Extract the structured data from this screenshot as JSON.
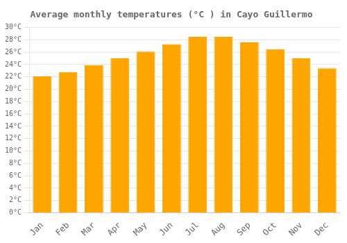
{
  "chart_data": {
    "type": "bar",
    "title": "Average monthly temperatures (°C ) in Cayo Guillermo",
    "categories": [
      "Jan",
      "Feb",
      "Mar",
      "Apr",
      "May",
      "Jun",
      "Jul",
      "Aug",
      "Sep",
      "Oct",
      "Nov",
      "Dec"
    ],
    "values": [
      22.1,
      22.8,
      23.9,
      25.0,
      26.1,
      27.3,
      28.5,
      28.5,
      27.6,
      26.5,
      25.0,
      23.4
    ],
    "color": "#FFA500",
    "ylim": [
      0,
      30
    ],
    "yticks": [
      {
        "value": 0,
        "label": "0°C"
      },
      {
        "value": 2,
        "label": "2°C"
      },
      {
        "value": 4,
        "label": "4°C"
      },
      {
        "value": 6,
        "label": "6°C"
      },
      {
        "value": 8,
        "label": "8°C"
      },
      {
        "value": 10,
        "label": "10°C"
      },
      {
        "value": 12,
        "label": "12°C"
      },
      {
        "value": 14,
        "label": "14°C"
      },
      {
        "value": 16,
        "label": "16°C"
      },
      {
        "value": 18,
        "label": "18°C"
      },
      {
        "value": 20,
        "label": "20°C"
      },
      {
        "value": 22,
        "label": "22°C"
      },
      {
        "value": 24,
        "label": "24°C"
      },
      {
        "value": 26,
        "label": "26°C"
      },
      {
        "value": 28,
        "label": "28°C"
      },
      {
        "value": 30,
        "label": "30°C"
      }
    ],
    "grid": true
  }
}
